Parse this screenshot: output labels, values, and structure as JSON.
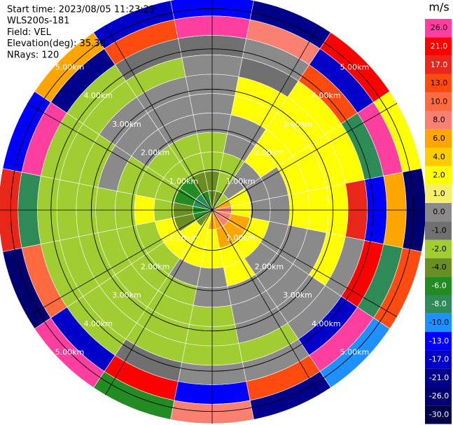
{
  "chart_data": {
    "type": "ppi",
    "annotations": [
      "Start time: 2023/08/05 11:23:29",
      "WLS200s-181",
      "Field: VEL",
      "Elevation(deg): 35.30",
      "NRays: 120"
    ],
    "colorbar_label": "m/s",
    "colorbar": [
      {
        "value": 26,
        "label": "26.0",
        "color": "#ff3fa0"
      },
      {
        "value": 21,
        "label": "21.0",
        "color": "#ff0000"
      },
      {
        "value": 17,
        "label": "17.0",
        "color": "#e8261a"
      },
      {
        "value": 13,
        "label": "13.0",
        "color": "#ff4a10"
      },
      {
        "value": 10,
        "label": "10.0",
        "color": "#ff6a40"
      },
      {
        "value": 8,
        "label": "8.0",
        "color": "#fa8072"
      },
      {
        "value": 6,
        "label": "6.0",
        "color": "#ffa500"
      },
      {
        "value": 4,
        "label": "4.0",
        "color": "#ffcc00"
      },
      {
        "value": 2,
        "label": "2.0",
        "color": "#ffff00"
      },
      {
        "value": 1,
        "label": "1.0",
        "color": "#f5f06a"
      },
      {
        "value": 0,
        "label": "0.0",
        "color": "#8a8a8a"
      },
      {
        "value": -1,
        "label": "-1.0",
        "color": "#707070"
      },
      {
        "value": -2,
        "label": "-2.0",
        "color": "#a2cd32"
      },
      {
        "value": -4,
        "label": "-4.0",
        "color": "#6b8e23"
      },
      {
        "value": -6,
        "label": "-6.0",
        "color": "#228b22"
      },
      {
        "value": -8,
        "label": "-8.0",
        "color": "#2e8b57"
      },
      {
        "value": -10,
        "label": "-10.0",
        "color": "#1e90ff"
      },
      {
        "value": -13,
        "label": "-13.0",
        "color": "#0000ff"
      },
      {
        "value": -17,
        "label": "-17.0",
        "color": "#0000c8"
      },
      {
        "value": -21,
        "label": "-21.0",
        "color": "#00008b"
      },
      {
        "value": -26,
        "label": "-26.0",
        "color": "#000070"
      },
      {
        "value": -30,
        "label": "-30.0",
        "color": "#00004a"
      }
    ],
    "rlim": [
      0,
      5.3
    ],
    "rings": [
      {
        "value": 1,
        "label": "1.00km"
      },
      {
        "value": 2,
        "label": "2.00km"
      },
      {
        "value": 3,
        "label": "3.00km"
      },
      {
        "value": 4,
        "label": "4.00km"
      },
      {
        "value": 5,
        "label": "5.00km"
      }
    ],
    "gates": [
      [
        -4,
        -4,
        -2,
        -2,
        0,
        0,
        0,
        0,
        -1,
        26,
        -13
      ],
      [
        -4,
        -2,
        -2,
        0,
        0,
        2,
        2,
        -1,
        0,
        8,
        -21
      ],
      [
        -2,
        0,
        0,
        2,
        2,
        2,
        2,
        2,
        13,
        -17,
        21
      ],
      [
        6,
        2,
        0,
        0,
        2,
        2,
        2,
        2,
        -8,
        26,
        2
      ],
      [
        8,
        2,
        0,
        0,
        2,
        2,
        2,
        17,
        -13,
        6,
        -26
      ],
      [
        8,
        6,
        2,
        0,
        0,
        0,
        2,
        0,
        21,
        -8,
        13
      ],
      [
        8,
        6,
        2,
        0,
        0,
        0,
        0,
        0,
        -17,
        26,
        -10
      ],
      [
        6,
        6,
        2,
        2,
        0,
        0,
        0,
        -2,
        0,
        13,
        -21
      ],
      [
        6,
        2,
        2,
        0,
        0,
        -2,
        -2,
        -2,
        0,
        -13,
        8
      ],
      [
        2,
        2,
        2,
        0,
        -2,
        -2,
        -2,
        -2,
        -1,
        21,
        -6
      ],
      [
        -4,
        2,
        2,
        -2,
        -2,
        -2,
        -2,
        -2,
        -2,
        -17,
        26
      ],
      [
        -6,
        -4,
        2,
        -2,
        -2,
        -2,
        -2,
        -2,
        -2,
        10,
        -26
      ],
      [
        -6,
        -4,
        -2,
        2,
        -2,
        -2,
        -2,
        -2,
        -2,
        -8,
        17
      ],
      [
        -8,
        -6,
        -2,
        -2,
        -2,
        0,
        -2,
        -2,
        -2,
        26,
        -13
      ],
      [
        -8,
        -6,
        -2,
        -2,
        0,
        0,
        0,
        -2,
        -2,
        -21,
        6
      ],
      [
        -6,
        -4,
        -2,
        -2,
        0,
        0,
        0,
        -2,
        -1,
        13,
        -17
      ]
    ]
  }
}
